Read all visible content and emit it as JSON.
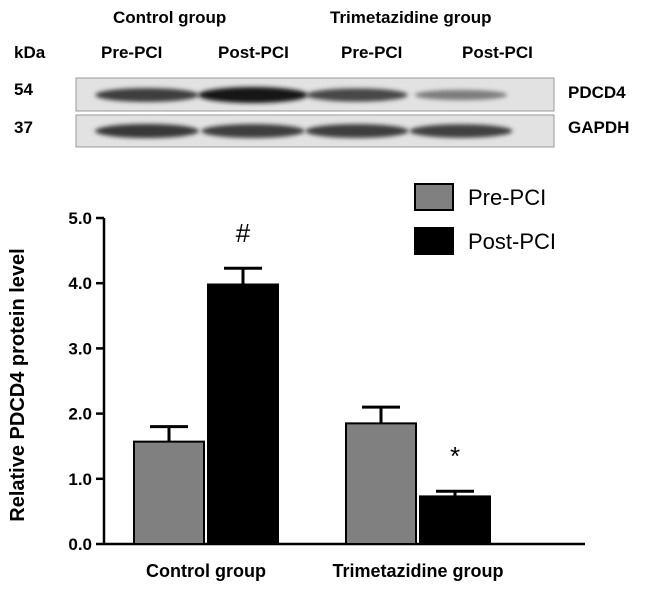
{
  "blot": {
    "group_labels": [
      "Control group",
      "Trimetazidine group"
    ],
    "unit_label": "kDa",
    "lane_labels": [
      "Pre-PCI",
      "Post-PCI",
      "Pre-PCI",
      "Post-PCI"
    ],
    "rows": [
      {
        "marker": "54",
        "protein": "PDCD4",
        "intensity": [
          0.78,
          1.0,
          0.72,
          0.42
        ]
      },
      {
        "marker": "37",
        "protein": "GAPDH",
        "intensity": [
          0.8,
          0.78,
          0.78,
          0.76
        ]
      }
    ]
  },
  "chart_data": {
    "type": "bar",
    "categories": [
      "Control group",
      "Trimetazidine group"
    ],
    "series": [
      {
        "name": "Pre-PCI",
        "color": "#808080",
        "values": [
          1.57,
          1.85
        ],
        "errors": [
          0.23,
          0.25
        ]
      },
      {
        "name": "Post-PCI",
        "color": "#000000",
        "values": [
          3.98,
          0.73
        ],
        "errors": [
          0.25,
          0.08
        ]
      }
    ],
    "annotations": [
      {
        "series": "Post-PCI",
        "category": "Control group",
        "text": "#"
      },
      {
        "series": "Post-PCI",
        "category": "Trimetazidine group",
        "text": "*"
      }
    ],
    "xlabel": "",
    "ylabel": "Relative PDCD4 protein level",
    "ylim": [
      0,
      5.0
    ],
    "yticks": [
      "0.0",
      "1.0",
      "2.0",
      "3.0",
      "4.0",
      "5.0"
    ],
    "legend_position": "top-right"
  }
}
